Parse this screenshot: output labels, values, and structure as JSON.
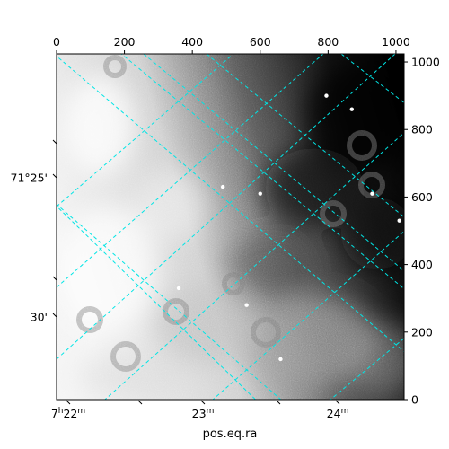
{
  "chart_data": {
    "type": "image",
    "colormap": "grayscale",
    "xlabel": "pos.eq.ra",
    "ylabel": "",
    "pixel_axes": {
      "xlim": [
        0,
        1024
      ],
      "ylim": [
        0,
        1024
      ],
      "bottom_ticks": [
        "0",
        "200",
        "400",
        "600",
        "800",
        "1000"
      ],
      "bottom_tick_values": [
        0,
        200,
        400,
        600,
        800,
        1000
      ],
      "right_ticks": [
        "0",
        "200",
        "400",
        "600",
        "800",
        "1000"
      ],
      "right_tick_values": [
        0,
        200,
        400,
        600,
        800,
        1000
      ]
    },
    "world_axes": {
      "ra_ticks": [
        {
          "h": "7",
          "m": "22"
        },
        {
          "h": "",
          "m": "23"
        },
        {
          "h": "",
          "m": "24"
        }
      ],
      "dec_ticks": [
        "71°25'",
        "30'"
      ]
    },
    "grid": {
      "on": true,
      "color": "#00e5e5",
      "style": "dashed"
    },
    "bright_sources": [
      {
        "x": 490,
        "y": 630
      },
      {
        "x": 600,
        "y": 610
      },
      {
        "x": 930,
        "y": 610
      },
      {
        "x": 560,
        "y": 280
      },
      {
        "x": 870,
        "y": 860
      },
      {
        "x": 795,
        "y": 900
      },
      {
        "x": 660,
        "y": 120
      },
      {
        "x": 360,
        "y": 330
      },
      {
        "x": 1010,
        "y": 530
      }
    ]
  }
}
